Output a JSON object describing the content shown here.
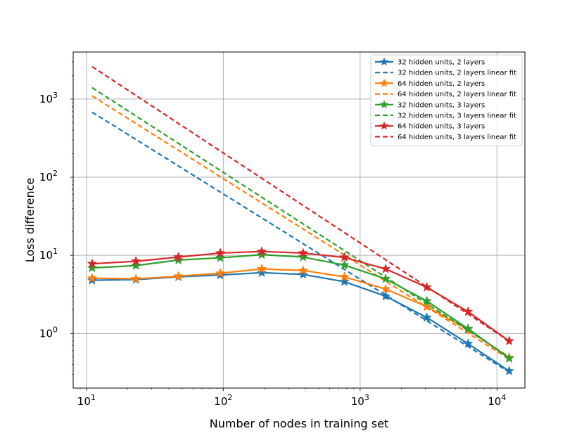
{
  "chart_data": {
    "type": "line",
    "title": "",
    "xlabel": "Number of nodes in training set",
    "ylabel": "Loss difference",
    "xscale": "log",
    "yscale": "log",
    "xlim": [
      8,
      16000
    ],
    "ylim": [
      0.2,
      4000
    ],
    "grid": true,
    "legend_position": "top-right",
    "x_ticks": [
      {
        "value": 10,
        "base": "10",
        "exp": "1"
      },
      {
        "value": 100,
        "base": "10",
        "exp": "2"
      },
      {
        "value": 1000,
        "base": "10",
        "exp": "3"
      },
      {
        "value": 10000,
        "base": "10",
        "exp": "4"
      }
    ],
    "y_ticks": [
      {
        "value": 1,
        "base": "10",
        "exp": "0"
      },
      {
        "value": 10,
        "base": "10",
        "exp": "1"
      },
      {
        "value": 100,
        "base": "10",
        "exp": "2"
      },
      {
        "value": 1000,
        "base": "10",
        "exp": "3"
      }
    ],
    "x": [
      11,
      23,
      47,
      95,
      191,
      383,
      767,
      1535,
      3071,
      6143,
      12287
    ],
    "series": [
      {
        "name": "32 hidden units, 2 layers",
        "color": "#1f77b4",
        "style": "solid-star",
        "values": [
          4.8,
          4.9,
          5.3,
          5.6,
          6.0,
          5.7,
          4.6,
          3.0,
          1.6,
          0.74,
          0.33
        ]
      },
      {
        "name": "32 hidden units, 2 layers linear fit",
        "color": "#1f77b4",
        "style": "dashed",
        "fit": {
          "x": [
            11,
            12287
          ],
          "y": [
            680,
            0.32
          ]
        }
      },
      {
        "name": "64 hidden units, 2 layers",
        "color": "#ff7f0e",
        "style": "solid-star",
        "values": [
          5.1,
          5.0,
          5.4,
          5.9,
          6.7,
          6.4,
          5.3,
          3.7,
          2.2,
          1.12,
          0.49
        ]
      },
      {
        "name": "64 hidden units, 2 layers linear fit",
        "color": "#ff7f0e",
        "style": "dashed",
        "fit": {
          "x": [
            11,
            12287
          ],
          "y": [
            1100,
            0.47
          ]
        }
      },
      {
        "name": "32 hidden units, 3 layers",
        "color": "#2ca02c",
        "style": "solid-star",
        "values": [
          6.9,
          7.4,
          8.7,
          9.3,
          10.2,
          9.5,
          7.5,
          5.0,
          2.6,
          1.15,
          0.48
        ]
      },
      {
        "name": "32 hidden units, 3 layers linear fit",
        "color": "#2ca02c",
        "style": "dashed",
        "fit": {
          "x": [
            11,
            12287
          ],
          "y": [
            1400,
            0.5
          ]
        }
      },
      {
        "name": "64 hidden units, 3 layers",
        "color": "#d62728",
        "style": "solid-star",
        "values": [
          7.8,
          8.4,
          9.5,
          10.7,
          11.2,
          10.7,
          9.4,
          6.7,
          3.9,
          1.9,
          0.8
        ]
      },
      {
        "name": "64 hidden units, 3 layers linear fit",
        "color": "#d62728",
        "style": "dashed",
        "fit": {
          "x": [
            11,
            12287
          ],
          "y": [
            2600,
            0.8
          ]
        }
      }
    ]
  }
}
